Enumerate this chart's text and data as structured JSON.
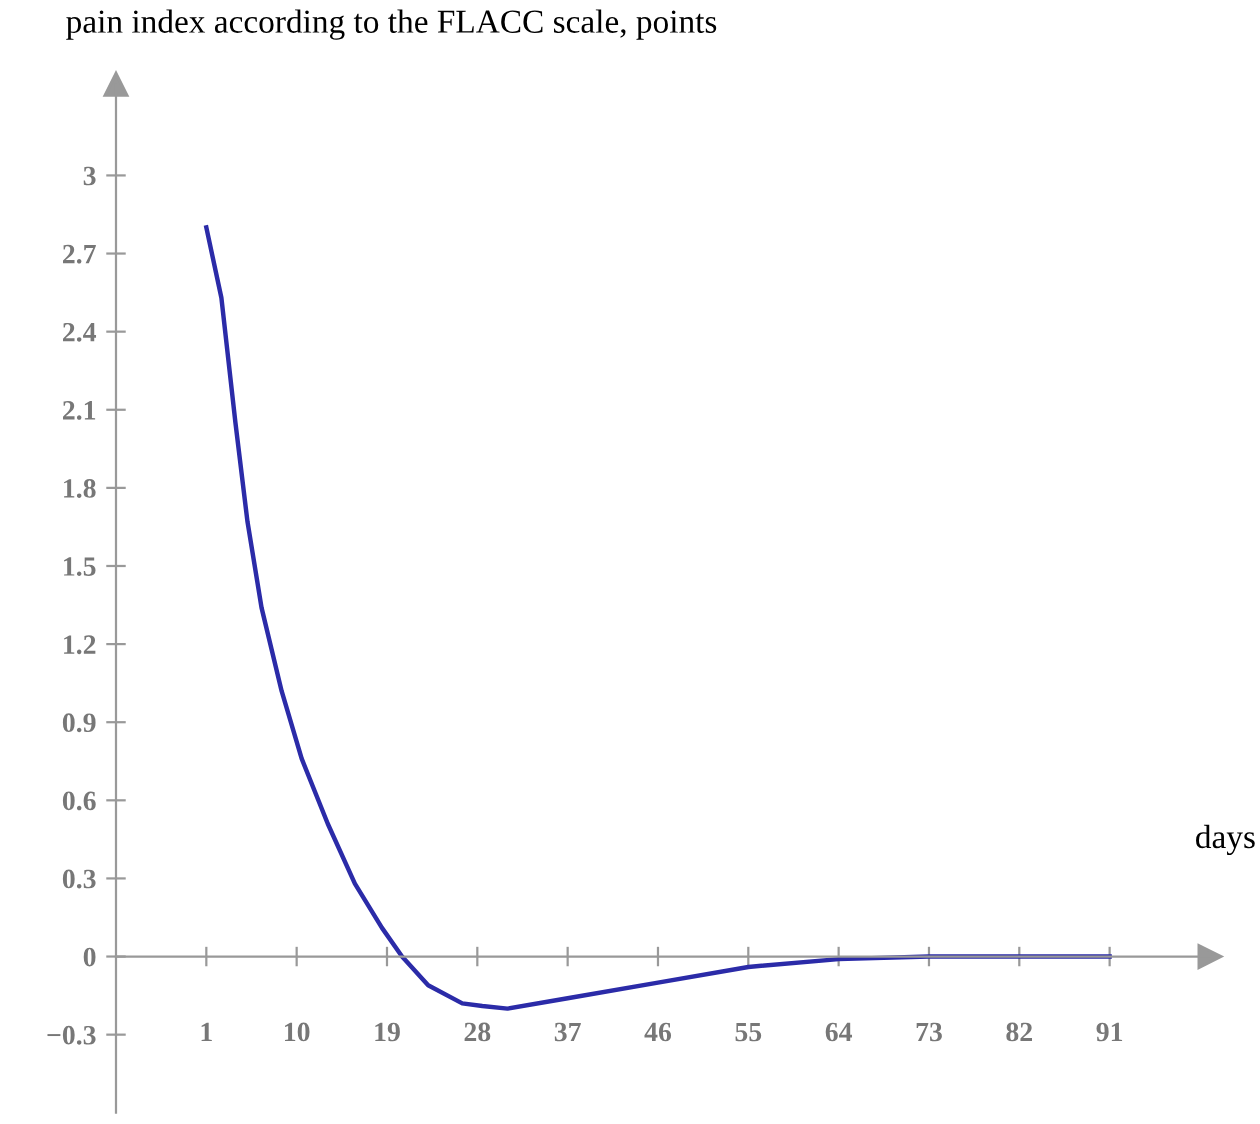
{
  "chart_data": {
    "type": "line",
    "xlabel": "days",
    "ylabel": "pain index according to the FLACC scale, points",
    "series": [
      {
        "color": "#2b2ba8",
        "x": [
          1,
          2.5,
          3.9,
          5.1,
          6.5,
          8.5,
          10.5,
          13.1,
          15.8,
          18.5,
          20.5,
          23.1,
          26.5,
          28.5,
          31,
          37,
          46,
          55,
          64,
          73,
          82,
          91
        ],
        "values": [
          2.8,
          2.53,
          2.05,
          1.67,
          1.34,
          1.02,
          0.76,
          0.51,
          0.28,
          0.11,
          0,
          -0.11,
          -0.18,
          -0.19,
          -0.2,
          -0.16,
          -0.1,
          -0.04,
          -0.01,
          0,
          0,
          0
        ]
      }
    ],
    "xlim": [
      -8,
      101
    ],
    "ylim": [
      -0.6,
      3.35
    ],
    "xticks": [
      1,
      10,
      19,
      28,
      37,
      46,
      55,
      64,
      73,
      82,
      91
    ],
    "yticks": [
      {
        "value": -0.3,
        "label": "−0.3"
      },
      0,
      0.3,
      0.6,
      0.9,
      1.2,
      1.5,
      1.8,
      2.1,
      2.4,
      2.7,
      3
    ],
    "grid": false,
    "legend": false,
    "marker": "none",
    "line_style": "solid"
  }
}
